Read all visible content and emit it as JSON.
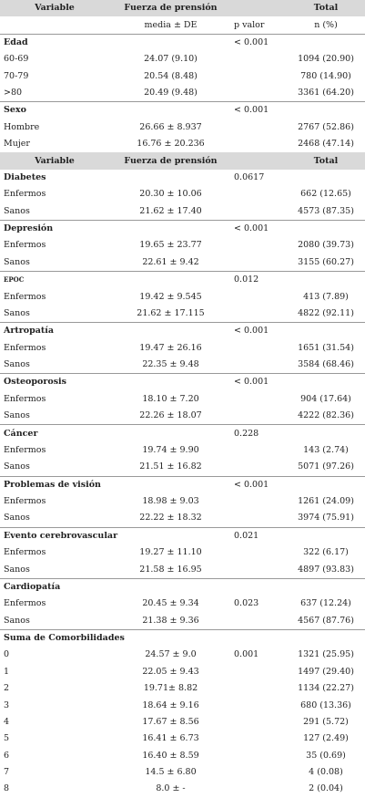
{
  "table": {
    "sections": [
      {
        "header": {
          "variable": "Variable",
          "grip": "Fuerza de prensión",
          "total": "Total"
        },
        "subheader": {
          "grip": "media ± DE",
          "p": "p valor",
          "total": "n (%)"
        },
        "groups": [
          {
            "title": "Edad",
            "p": "< 0.001",
            "rows": [
              {
                "label": "60-69",
                "grip": "24.07 (9.10)",
                "total": "1094 (20.90)"
              },
              {
                "label": "70-79",
                "grip": "20.54 (8.48)",
                "total": "780 (14.90)"
              },
              {
                "label": ">80",
                "grip": "20.49 (9.48)",
                "total": "3361 (64.20)"
              }
            ]
          },
          {
            "title": "Sexo",
            "p": "< 0.001",
            "rows": [
              {
                "label": "Hombre",
                "grip": "26.66 ± 8.937",
                "total": "2767 (52.86)"
              },
              {
                "label": "Mujer",
                "grip": "16.76 ± 20.236",
                "total": "2468 (47.14)"
              }
            ]
          }
        ]
      },
      {
        "header": {
          "variable": "Variable",
          "grip": "Fuerza de prensión",
          "total": "Total"
        },
        "groups": [
          {
            "title": "Diabetes",
            "p": "0.0617",
            "rows": [
              {
                "label": "Enfermos",
                "grip": "20.30 ± 10.06",
                "total": "662 (12.65)"
              },
              {
                "label": "Sanos",
                "grip": "21.62 ± 17.40",
                "total": "4573 (87.35)"
              }
            ]
          },
          {
            "title": "Depresión",
            "p": "< 0.001",
            "rows": [
              {
                "label": "Enfermos",
                "grip": "19.65 ± 23.77",
                "total": "2080 (39.73)"
              },
              {
                "label": "Sanos",
                "grip": "22.61 ± 9.42",
                "total": "3155 (60.27)"
              }
            ]
          },
          {
            "title": "EPOC",
            "p": "0.012",
            "rows": [
              {
                "label": "Enfermos",
                "grip": "19.42 ± 9.545",
                "total": "413 (7.89)"
              },
              {
                "label": "Sanos",
                "grip": "21.62 ± 17.115",
                "total": "4822 (92.11)"
              }
            ]
          },
          {
            "title": "Artropatía",
            "p": "< 0.001",
            "rows": [
              {
                "label": "Enfermos",
                "grip": "19.47 ± 26.16",
                "total": "1651 (31.54)"
              },
              {
                "label": "Sanos",
                "grip": "22.35 ± 9.48",
                "total": "3584 (68.46)"
              }
            ]
          },
          {
            "title": "Osteoporosis",
            "p": "< 0.001",
            "rows": [
              {
                "label": "Enfermos",
                "grip": "18.10 ± 7.20",
                "total": "904 (17.64)"
              },
              {
                "label": "Sanos",
                "grip": "22.26 ± 18.07",
                "total": "4222 (82.36)"
              }
            ]
          },
          {
            "title": "Cáncer",
            "p": "0.228",
            "rows": [
              {
                "label": "Enfermos",
                "grip": "19.74 ± 9.90",
                "total": "143 (2.74)"
              },
              {
                "label": "Sanos",
                "grip": "21.51 ± 16.82",
                "total": "5071 (97.26)"
              }
            ]
          },
          {
            "title": "Problemas de visión",
            "p": "< 0.001",
            "rows": [
              {
                "label": "Enfermos",
                "grip": "18.98 ± 9.03",
                "total": "1261 (24.09)"
              },
              {
                "label": "Sanos",
                "grip": "22.22 ± 18.32",
                "total": "3974 (75.91)"
              }
            ]
          },
          {
            "title": "Evento cerebrovascular",
            "p": "0.021",
            "rows": [
              {
                "label": "Enfermos",
                "grip": "19.27 ± 11.10",
                "total": "322 (6.17)"
              },
              {
                "label": "Sanos",
                "grip": "21.58 ± 16.95",
                "total": "4897 (93.83)"
              }
            ]
          },
          {
            "title": "Cardiopatía",
            "rows": [
              {
                "label": "Enfermos",
                "grip": "20.45 ± 9.34",
                "p": "0.023",
                "total": "637 (12.24)"
              },
              {
                "label": "Sanos",
                "grip": "21.38 ± 9.36",
                "total": "4567 (87.76)"
              }
            ]
          },
          {
            "title": "Suma de Comorbilidades",
            "rows": [
              {
                "label": "0",
                "grip": "24.57 ± 9.0",
                "p": "0.001",
                "total": "1321 (25.95)"
              },
              {
                "label": "1",
                "grip": "22.05 ± 9.43",
                "total": "1497 (29.40)"
              },
              {
                "label": "2",
                "grip": "19.71± 8.82",
                "total": "1134 (22.27)"
              },
              {
                "label": "3",
                "grip": "18.64 ± 9.16",
                "total": "680 (13.36)"
              },
              {
                "label": "4",
                "grip": "17.67 ± 8.56",
                "total": "291 (5.72)"
              },
              {
                "label": "5",
                "grip": "16.41 ± 6.73",
                "total": "127 (2.49)"
              },
              {
                "label": "6",
                "grip": "16.40 ± 8.59",
                "total": "35 (0.69)"
              },
              {
                "label": "7",
                "grip": "14.5 ± 6.80",
                "total": "4 (0.08)"
              },
              {
                "label": "8",
                "grip": "8.0 ± -",
                "total": "2 (0.04)"
              }
            ]
          }
        ]
      }
    ]
  }
}
